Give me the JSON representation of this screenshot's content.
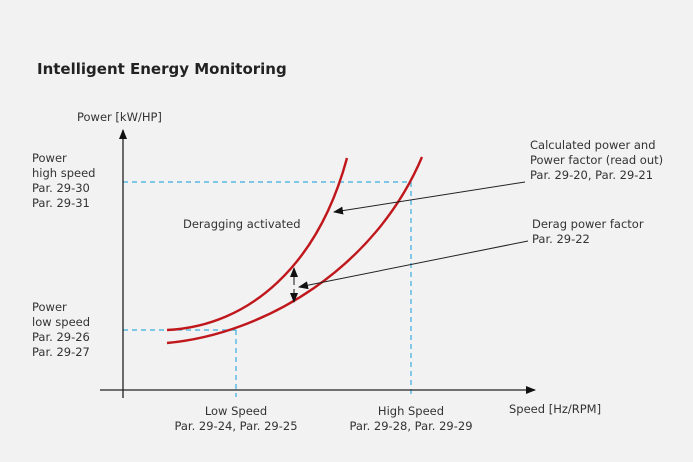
{
  "title": "Intelligent Energy Monitoring",
  "y_axis_label": "Power [kW/HP]",
  "x_axis_label": "Speed [Hz/RPM]",
  "power_high": [
    "Power",
    "high speed",
    "Par. 29-30",
    "Par. 29-31"
  ],
  "power_low": [
    "Power",
    "low speed",
    "Par. 29-26",
    "Par. 29-27"
  ],
  "low_speed": [
    "Low Speed",
    "Par. 29-24, Par. 29-25"
  ],
  "high_speed": [
    "High Speed",
    "Par. 29-28, Par. 29-29"
  ],
  "deragging_label": "Deragging activated",
  "calculated_power": [
    "Calculated power and",
    "Power factor (read out)",
    "Par. 29-20, Par. 29-21"
  ],
  "derag_power_factor": [
    "Derag power factor",
    "Par. 29-22"
  ],
  "colors": {
    "curve": "#c0171c",
    "guide": "#3aaee0",
    "axis": "#222222"
  }
}
